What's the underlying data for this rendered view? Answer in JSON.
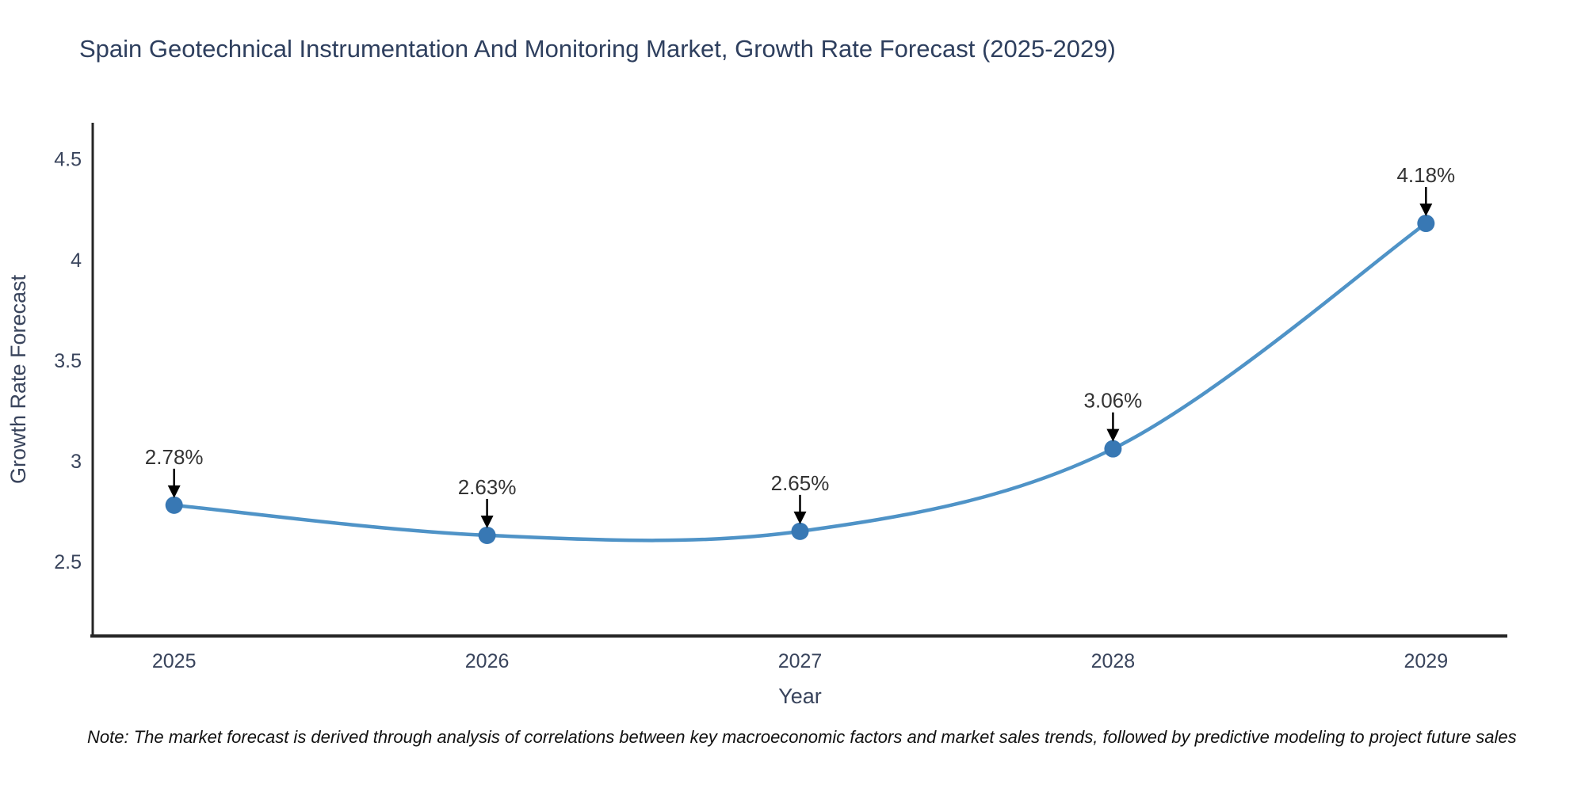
{
  "chart_data": {
    "type": "line",
    "title": "Spain Geotechnical Instrumentation And Monitoring Market, Growth Rate Forecast (2025-2029)",
    "xlabel": "Year",
    "ylabel": "Growth Rate Forecast",
    "x": [
      2025,
      2026,
      2027,
      2028,
      2029
    ],
    "series": [
      {
        "name": "Growth Rate Forecast",
        "values": [
          2.78,
          2.63,
          2.65,
          3.06,
          4.18
        ]
      }
    ],
    "point_labels": [
      "2.78%",
      "2.63%",
      "2.65%",
      "3.06%",
      "4.18%"
    ],
    "xtick_labels": [
      "2025",
      "2026",
      "2027",
      "2028",
      "2029"
    ],
    "yticks": [
      2.5,
      3,
      3.5,
      4,
      4.5
    ],
    "ytick_labels": [
      "2.5",
      "3",
      "3.5",
      "4",
      "4.5"
    ],
    "xlim": [
      2024.74,
      2029.26
    ],
    "ylim": [
      2.13,
      4.68
    ],
    "line_shape": "spline",
    "grid": false,
    "legend": false,
    "colors": {
      "line": "#4f93c7",
      "marker": "#3878b4",
      "axis": "#252525",
      "title": "#2e3f5e",
      "tick": "#39445c",
      "axis_title": "#39445c",
      "annotation": "#333333",
      "arrow": "#000000",
      "note": "#111111",
      "background": "#ffffff"
    },
    "note": "Note: The market forecast is derived through analysis of correlations between key macroeconomic factors and market sales trends, followed by predictive modeling to project future sales"
  }
}
